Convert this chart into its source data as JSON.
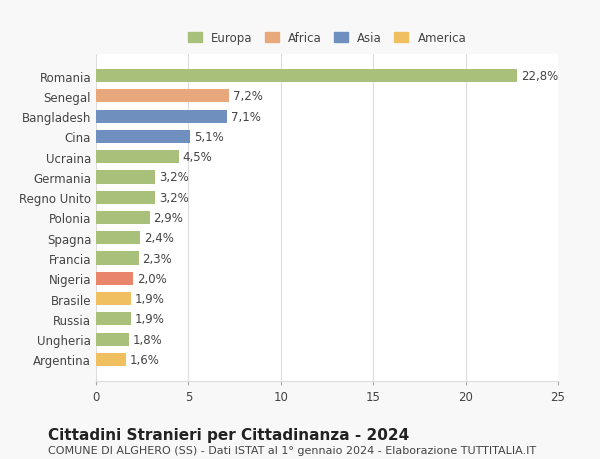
{
  "categories": [
    "Romania",
    "Senegal",
    "Bangladesh",
    "Cina",
    "Ucraina",
    "Germania",
    "Regno Unito",
    "Polonia",
    "Spagna",
    "Francia",
    "Nigeria",
    "Brasile",
    "Russia",
    "Ungheria",
    "Argentina"
  ],
  "values": [
    22.8,
    7.2,
    7.1,
    5.1,
    4.5,
    3.2,
    3.2,
    2.9,
    2.4,
    2.3,
    2.0,
    1.9,
    1.9,
    1.8,
    1.6
  ],
  "labels": [
    "22,8%",
    "7,2%",
    "7,1%",
    "5,1%",
    "4,5%",
    "3,2%",
    "3,2%",
    "2,9%",
    "2,4%",
    "2,3%",
    "2,0%",
    "1,9%",
    "1,9%",
    "1,8%",
    "1,6%"
  ],
  "bar_colors": [
    "#a8c07a",
    "#e8a87c",
    "#6f8fbf",
    "#6f8fbf",
    "#a8c07a",
    "#a8c07a",
    "#a8c07a",
    "#a8c07a",
    "#a8c07a",
    "#a8c07a",
    "#e8856a",
    "#f0c060",
    "#a8c07a",
    "#a8c07a",
    "#f0c060"
  ],
  "continent_colors": {
    "Europa": "#a8c07a",
    "Africa": "#e8a87c",
    "Asia": "#6f8fbf",
    "America": "#f0c060"
  },
  "legend_labels": [
    "Europa",
    "Africa",
    "Asia",
    "America"
  ],
  "xlim": [
    0,
    25
  ],
  "xticks": [
    0,
    5,
    10,
    15,
    20,
    25
  ],
  "title": "Cittadini Stranieri per Cittadinanza - 2024",
  "subtitle": "COMUNE DI ALGHERO (SS) - Dati ISTAT al 1° gennaio 2024 - Elaborazione TUTTITALIA.IT",
  "background_color": "#f8f8f8",
  "plot_bg_color": "#ffffff",
  "grid_color": "#dddddd",
  "bar_height": 0.65,
  "label_fontsize": 8.5,
  "tick_fontsize": 8.5,
  "title_fontsize": 11,
  "subtitle_fontsize": 8
}
